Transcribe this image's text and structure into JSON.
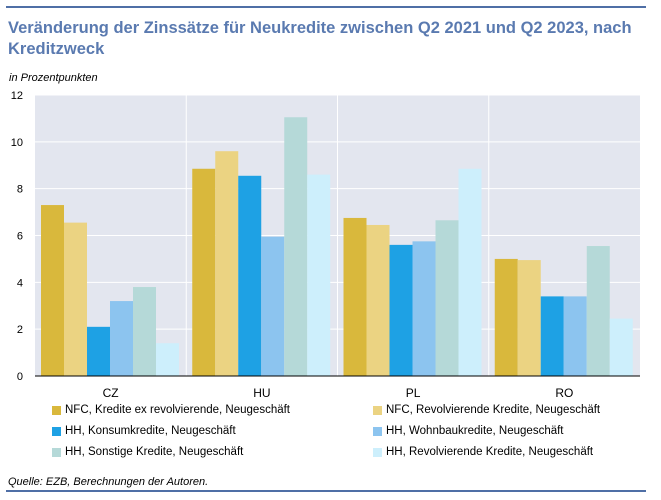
{
  "title": "Veränderung der Zinssätze für Neukredite zwischen Q2 2021 und Q2 2023, nach Kreditzweck",
  "unit_label": "in Prozentpunkten",
  "source": "Quelle: EZB, Berechnungen der Autoren.",
  "colors": {
    "plot_bg": "#e3e6ef",
    "grid": "#ffffff",
    "axis": "#000000",
    "frame": "#4f6fa6"
  },
  "chart_data": {
    "type": "bar",
    "title": "Veränderung der Zinssätze für Neukredite zwischen Q2 2021 und Q2 2023, nach Kreditzweck",
    "ylabel": "in Prozentpunkten",
    "xlabel": "",
    "categories": [
      "CZ",
      "HU",
      "PL",
      "RO"
    ],
    "ylim": [
      0,
      12
    ],
    "yticks": [
      0,
      2,
      4,
      6,
      8,
      10,
      12
    ],
    "grid": true,
    "legend_placement": "bottom",
    "series": [
      {
        "name": "NFC, Kredite ex revolvierende, Neugeschäft",
        "color": "#d9b83c",
        "values": [
          7.3,
          8.85,
          6.75,
          5.0
        ]
      },
      {
        "name": "NFC, Revolvierende Kredite, Neugeschäft",
        "color": "#ebd382",
        "values": [
          6.55,
          9.6,
          6.45,
          4.95
        ]
      },
      {
        "name": "HH, Konsumkredite, Neugeschäft",
        "color": "#1ea1e4",
        "values": [
          2.1,
          8.55,
          5.6,
          3.4
        ]
      },
      {
        "name": "HH, Wohnbaukredite, Neugeschäft",
        "color": "#8cc4ef",
        "values": [
          3.2,
          5.95,
          5.75,
          3.4
        ]
      },
      {
        "name": "HH, Sonstige Kredite, Neugeschäft",
        "color": "#b5d9d8",
        "values": [
          3.8,
          11.05,
          6.65,
          5.55
        ]
      },
      {
        "name": "HH, Revolvierende Kredite, Neugeschäft",
        "color": "#cdeffc",
        "values": [
          1.4,
          8.6,
          8.85,
          2.45
        ]
      }
    ]
  }
}
